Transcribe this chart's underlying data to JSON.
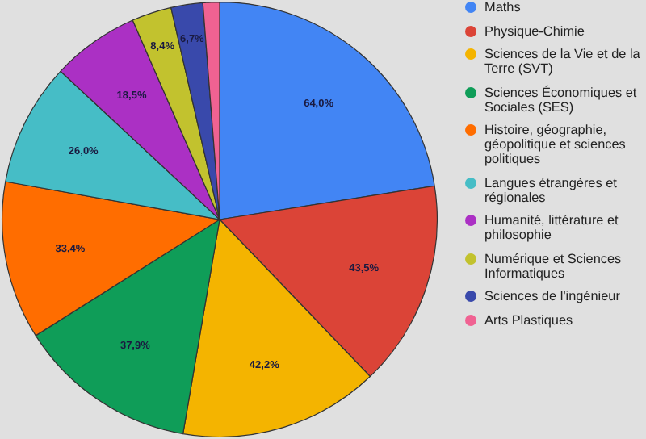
{
  "chart_data": {
    "type": "pie",
    "categories": [
      "Maths",
      "Physique-Chimie",
      "Sciences de la Vie et de la Terre (SVT)",
      "Sciences Économiques et Sociales (SES)",
      "Histoire, géographie, géopolitique et sciences politiques",
      "Langues étrangères et régionales",
      "Humanité, littérature et philosophie",
      "Numérique et Sciences Informatiques",
      "Sciences de l'ingénieur",
      "Arts Plastiques"
    ],
    "values": [
      64.0,
      43.5,
      42.2,
      37.9,
      33.4,
      26.0,
      18.5,
      8.4,
      6.7,
      3.5
    ],
    "value_labels": [
      "64,0%",
      "43,5%",
      "42,2%",
      "37,9%",
      "33,4%",
      "26,0%",
      "18,5%",
      "8,4%",
      "6,7%",
      null
    ],
    "colors": [
      "#4285f4",
      "#db4437",
      "#f4b400",
      "#0f9d58",
      "#ff6d00",
      "#46bdc6",
      "#ab30c4",
      "#c2c22e",
      "#3949ab",
      "#f06292"
    ],
    "legend": "right"
  }
}
